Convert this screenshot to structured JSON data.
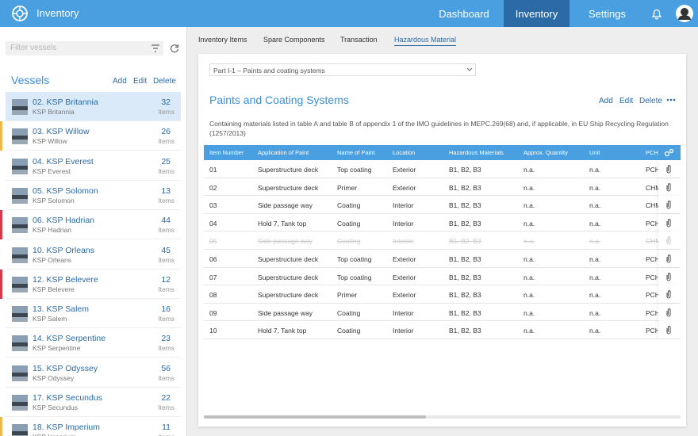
{
  "header": {
    "app_title": "Inventory",
    "nav": [
      {
        "label": "Dashboard",
        "active": false
      },
      {
        "label": "Inventory",
        "active": true
      },
      {
        "label": "Settings",
        "active": false
      }
    ]
  },
  "sidebar": {
    "filter_placeholder": "Filter vessels",
    "title": "Vessels",
    "actions": [
      "Add",
      "Edit",
      "Delete"
    ],
    "count_label": "Items",
    "vessels": [
      {
        "name": "02. KSP Britannia",
        "subtitle": "KSP Britannia",
        "count": 32,
        "selected": true
      },
      {
        "name": "03. KSP Willow",
        "subtitle": "KSP Willow",
        "count": 26,
        "marker": "#f2b84b"
      },
      {
        "name": "04. KSP Everest",
        "subtitle": "KSP Everest",
        "count": 25
      },
      {
        "name": "05. KSP Solomon",
        "subtitle": "KSP Solomon",
        "count": 13
      },
      {
        "name": "06. KSP Hadrian",
        "subtitle": "KSP Hadrian",
        "count": 44,
        "marker": "#d9384a"
      },
      {
        "name": "10. KSP Orleans",
        "subtitle": "KSP Orleans",
        "count": 45
      },
      {
        "name": "12. KSP Belevere",
        "subtitle": "KSP Belevere",
        "count": 12,
        "marker": "#d9384a"
      },
      {
        "name": "13. KSP Salem",
        "subtitle": "KSP Salem",
        "count": 16
      },
      {
        "name": "14. KSP Serpentine",
        "subtitle": "KSP Serpentine",
        "count": 23
      },
      {
        "name": "15. KSP Odyssey",
        "subtitle": "KSP Odyssey",
        "count": 56
      },
      {
        "name": "17. KSP Secundus",
        "subtitle": "KSP Secundus",
        "count": 22
      },
      {
        "name": "18. KSP Imperium",
        "subtitle": "KSP Imperium",
        "count": 11,
        "marker": "#f2b84b"
      }
    ]
  },
  "tabs": [
    {
      "label": "Inventory Items",
      "active": false
    },
    {
      "label": "Spare Components",
      "active": false
    },
    {
      "label": "Transaction",
      "active": false
    },
    {
      "label": "Hazardous Material",
      "active": true
    }
  ],
  "panel": {
    "dropdown": "Part I-1 – Paints and coating systems",
    "title": "Paints and Coating Systems",
    "actions": [
      "Add",
      "Edit",
      "Delete"
    ],
    "description": "Containing materials listed in table A and table B of appendix 1 of the IMO guidelines in MEPC.269(68) and, if applicable, in EU Ship Recycling Regulation (1257/2013)"
  },
  "table": {
    "columns": [
      "Item Number",
      "Application of Paint",
      "Name of Paint",
      "Location",
      "Hazardous Materials",
      "Approx. Quantity",
      "Unit",
      "PCH"
    ],
    "rows": [
      {
        "cells": [
          "01",
          "Superstructure deck",
          "Top coating",
          "Exterior",
          "B1, B2, B3",
          "n.a.",
          "n.a.",
          "PCH"
        ]
      },
      {
        "cells": [
          "02",
          "Superstructure deck",
          "Primer",
          "Exterior",
          "B1, B2, B3",
          "n.a.",
          "n.a.",
          "CHM"
        ]
      },
      {
        "cells": [
          "03",
          "Side passage way",
          "Coating",
          "Interior",
          "B1, B2, B3",
          "n.a.",
          "n.a.",
          "CHM"
        ]
      },
      {
        "cells": [
          "04",
          "Hold 7, Tank top",
          "Coating",
          "Interior",
          "B1, B2, B3",
          "n.a.",
          "n.a.",
          "PCH"
        ]
      },
      {
        "cells": [
          "05",
          "Side passage way",
          "Coating",
          "Interior",
          "B1, B2, B3",
          "n.a.",
          "n.a.",
          "CHM"
        ],
        "removed": true
      },
      {
        "cells": [
          "06",
          "Superstructure deck",
          "Top coating",
          "Exterior",
          "B1, B2, B3",
          "n.a.",
          "n.a.",
          "PCH"
        ]
      },
      {
        "cells": [
          "07",
          "Superstructure deck",
          "Top coating",
          "Exterior",
          "B1, B2, B3",
          "n.a.",
          "n.a.",
          "PCH"
        ]
      },
      {
        "cells": [
          "08",
          "Superstructure deck",
          "Primer",
          "Exterior",
          "B1, B2, B3",
          "n.a.",
          "n.a.",
          "PCH"
        ]
      },
      {
        "cells": [
          "09",
          "Side passage way",
          "Coating",
          "Interior",
          "B1, B2, B3",
          "n.a.",
          "n.a.",
          "PCH"
        ]
      },
      {
        "cells": [
          "10",
          "Hold 7, Tank top",
          "Coating",
          "Interior",
          "B1, B2, B3",
          "n.a.",
          "n.a.",
          "PCH"
        ]
      }
    ]
  }
}
